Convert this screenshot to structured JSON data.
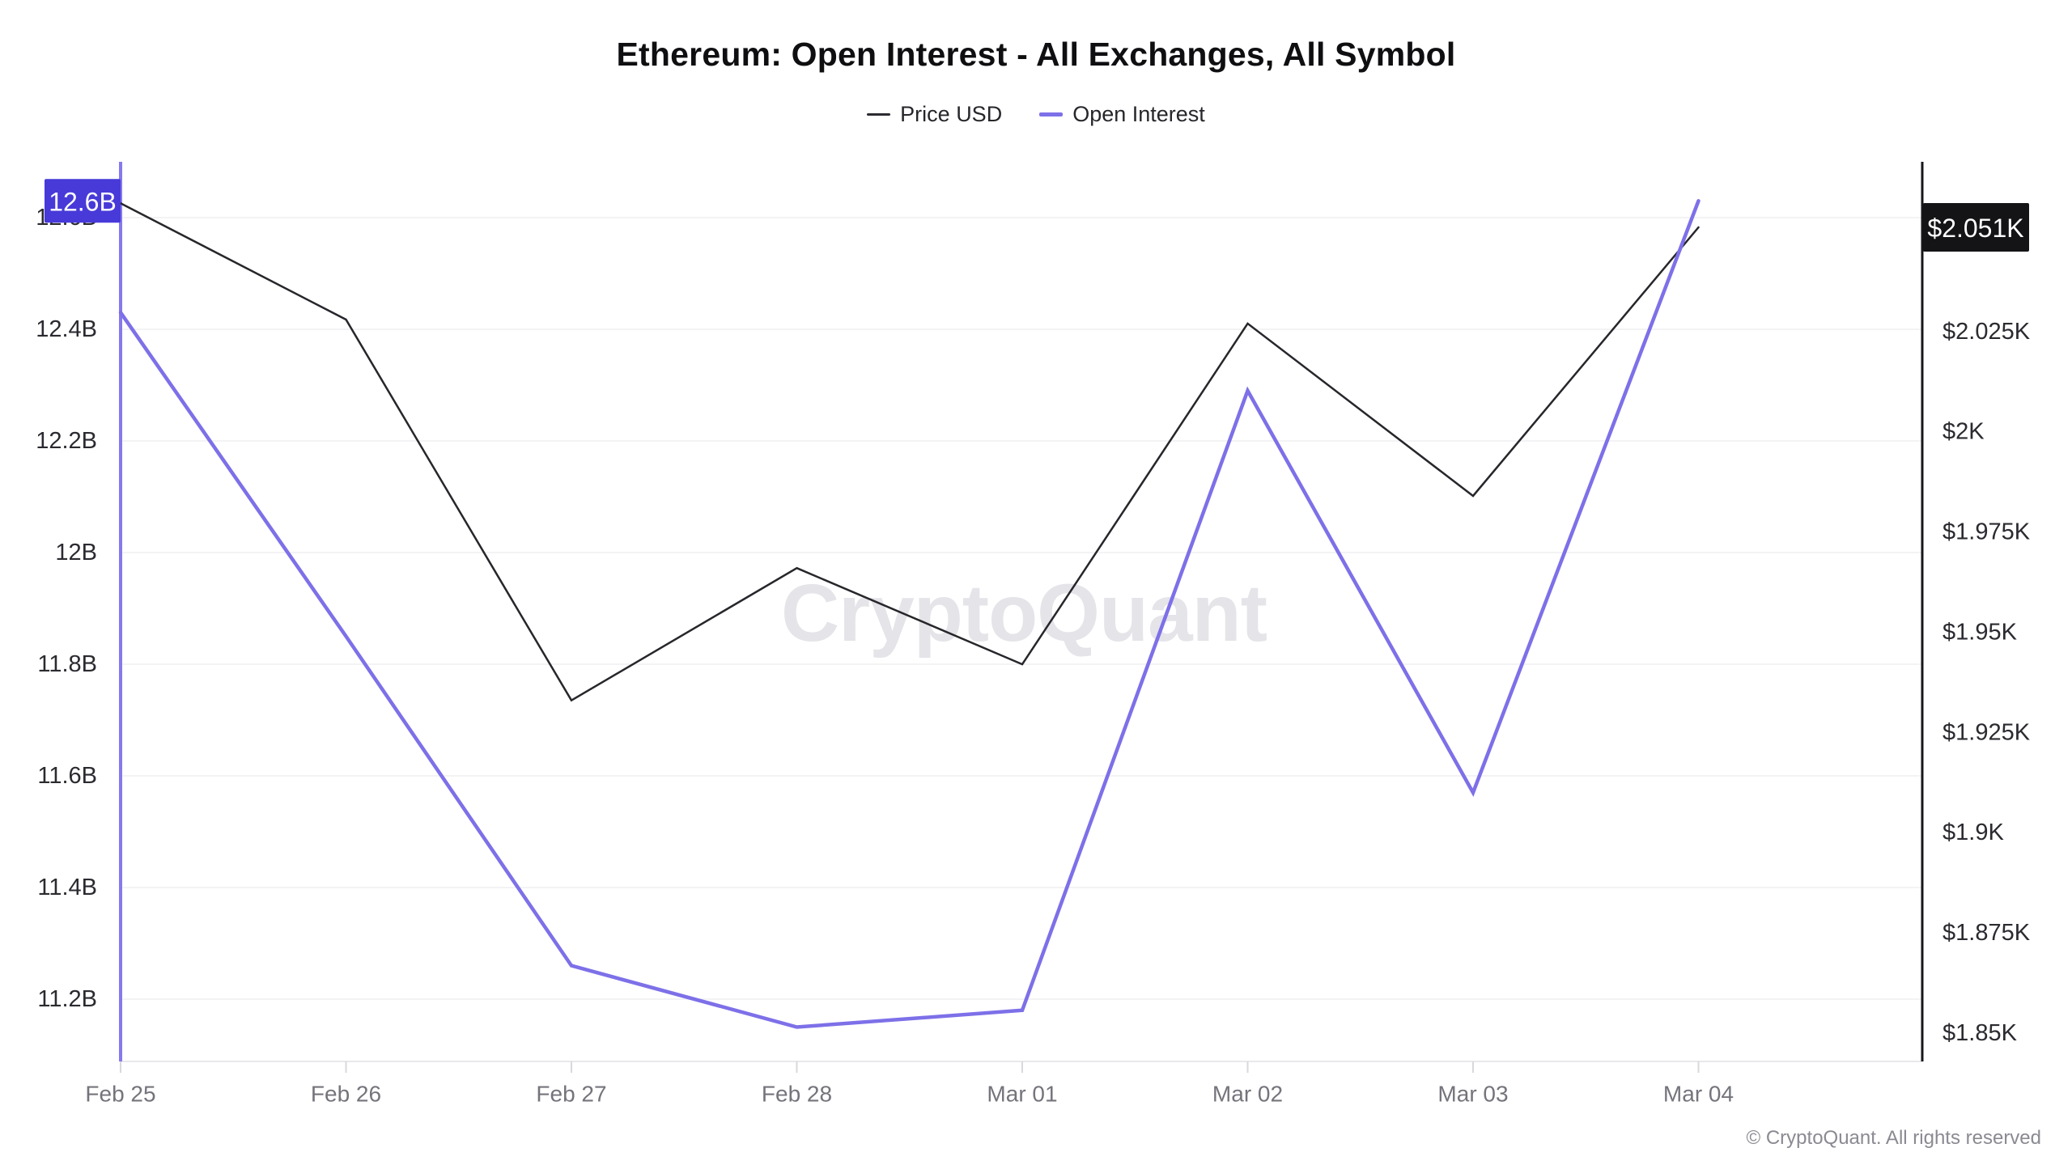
{
  "header": {
    "title": "Ethereum: Open Interest - All Exchanges, All Symbol"
  },
  "legend": [
    {
      "label": "Price USD",
      "color": "#2b2b31",
      "thickness": 3
    },
    {
      "label": "Open Interest",
      "color": "#7d70e8",
      "thickness": 5
    }
  ],
  "watermark": "CryptoQuant",
  "footer": {
    "copyright": "© CryptoQuant. All rights reserved"
  },
  "colors": {
    "price_line": "#26262b",
    "open_interest_line": "#7d70e8",
    "left_axis_line": "#8579ee",
    "right_axis_line": "#17171b",
    "gridline": "#f3f3f5",
    "axis_tick_text": "#2a2a30",
    "x_label_text": "#74747c",
    "left_badge_bg": "#473ad9",
    "right_badge_bg": "#141417",
    "badge_text": "#ffffff",
    "watermark_text": "#e4e4e9",
    "x_tick_mark": "#d8d8dd",
    "bottom_line": "#e8e8ec"
  },
  "chart_data": {
    "type": "line",
    "title": "Ethereum: Open Interest - All Exchanges, All Symbol",
    "grid": true,
    "legend_position": "top",
    "x_labels": [
      "Feb 25",
      "Feb 26",
      "Feb 27",
      "Feb 28",
      "Mar 01",
      "Mar 02",
      "Mar 03",
      "Mar 04"
    ],
    "series": [
      {
        "name": "Price USD",
        "axis": "right",
        "unit": "K USD",
        "values": [
          2.057,
          2.028,
          1.933,
          1.966,
          1.942,
          2.027,
          1.984,
          2.051
        ]
      },
      {
        "name": "Open Interest",
        "axis": "left",
        "unit": "B USD",
        "values": [
          12.43,
          11.85,
          11.26,
          11.15,
          11.18,
          12.29,
          11.57,
          12.63
        ]
      }
    ],
    "left_axis": {
      "title": "Open Interest",
      "range_approx": [
        11.09,
        12.69
      ],
      "ticks": [
        {
          "label": "12.6B",
          "value": 12.6
        },
        {
          "label": "12.4B",
          "value": 12.4
        },
        {
          "label": "12.2B",
          "value": 12.2
        },
        {
          "label": "12B",
          "value": 12.0
        },
        {
          "label": "11.8B",
          "value": 11.8
        },
        {
          "label": "11.6B",
          "value": 11.6
        },
        {
          "label": "11.4B",
          "value": 11.4
        },
        {
          "label": "11.2B",
          "value": 11.2
        }
      ],
      "last_value_badge": {
        "label": "12.6B",
        "value": 12.63
      }
    },
    "right_axis": {
      "title": "Price USD",
      "range_approx": [
        1.843,
        2.066
      ],
      "ticks": [
        {
          "label": "$2.025K",
          "value": 2.025
        },
        {
          "label": "$2K",
          "value": 2.0
        },
        {
          "label": "$1.975K",
          "value": 1.975
        },
        {
          "label": "$1.95K",
          "value": 1.95
        },
        {
          "label": "$1.925K",
          "value": 1.925
        },
        {
          "label": "$1.9K",
          "value": 1.9
        },
        {
          "label": "$1.875K",
          "value": 1.875
        },
        {
          "label": "$1.85K",
          "value": 1.85
        }
      ],
      "last_value_badge": {
        "label": "$2.051K",
        "value": 2.051
      }
    }
  }
}
